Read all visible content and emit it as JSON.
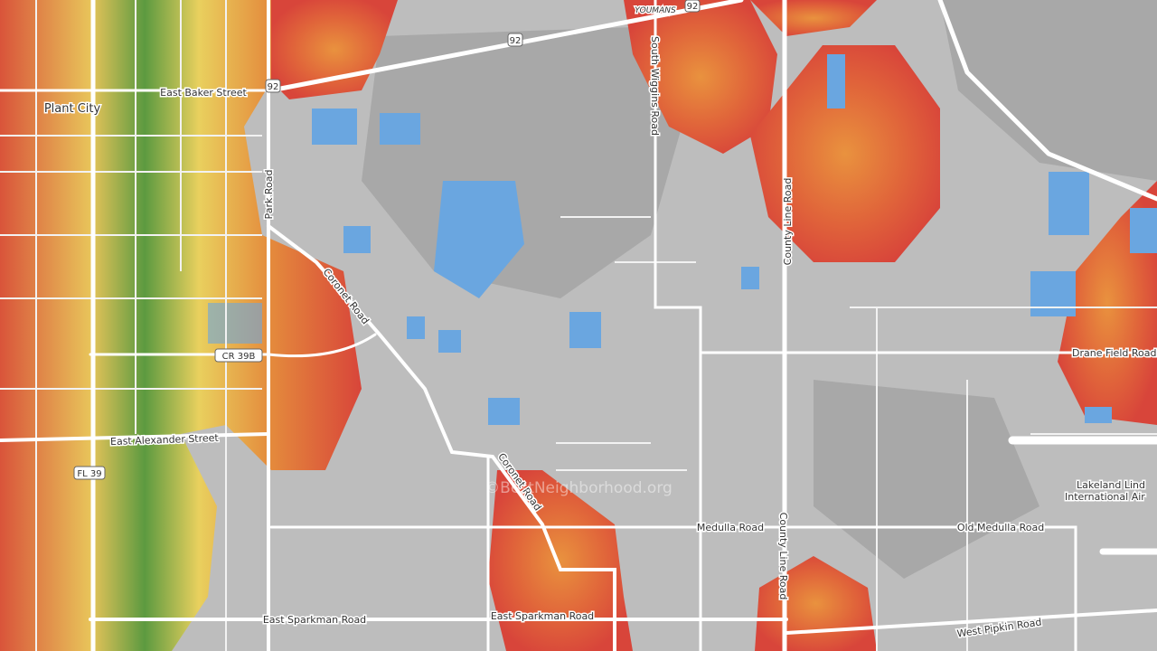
{
  "labels": [
    "Plant City",
    "East Baker Street",
    "Park Road",
    "Coronet Road",
    "CR 39B",
    "East Alexander Street",
    "FL 39",
    "92",
    "92",
    "92",
    "YOUMANS",
    "South Wiggins Road",
    "County Line Road",
    "County Line Road",
    "Drane Field Road",
    "Lakeland Lind",
    "International Air",
    "Coronet Road",
    "Medulla Road",
    "Old Medulla Road",
    "East Sparkman Road",
    "East Sparkman Road",
    "West Pipkin Road"
  ],
  "watermark": "©BestNeighborhood.org"
}
